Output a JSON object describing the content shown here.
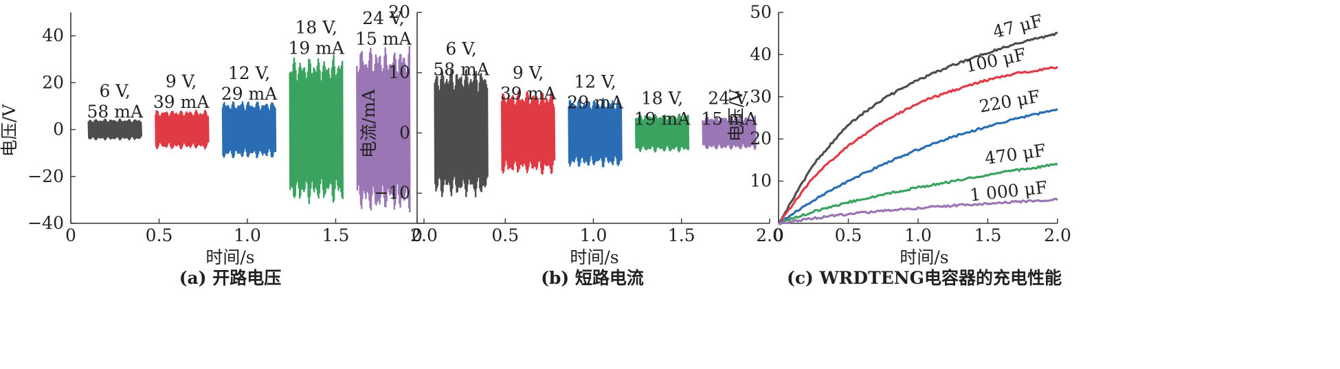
{
  "chart_data": [
    {
      "type": "line",
      "caption": "(a) 开路电压",
      "xlabel": "时间/s",
      "ylabel": "电压/V",
      "xlim": [
        0,
        2.0
      ],
      "ylim": [
        -40,
        50
      ],
      "xticks": [
        0,
        0.5,
        1.0,
        1.5,
        2.0
      ],
      "xtick_labels": [
        "0",
        "0.5",
        "1.0",
        "1.5",
        "2.0"
      ],
      "yticks": [
        -40,
        -20,
        0,
        20,
        40
      ],
      "ytick_labels": [
        "−40",
        "−20",
        "0",
        "20",
        "40"
      ],
      "series": [
        {
          "x_range": [
            0.1,
            0.4
          ],
          "amplitude": 4.5,
          "color": "#4d4d4d",
          "label_lines": [
            "6 V,",
            "58 mA"
          ],
          "label_pos": [
            0.25,
            14
          ]
        },
        {
          "x_range": [
            0.48,
            0.78
          ],
          "amplitude": 8.5,
          "color": "#e03a44",
          "label_lines": [
            "9 V,",
            "39 mA"
          ],
          "label_pos": [
            0.625,
            18
          ]
        },
        {
          "x_range": [
            0.86,
            1.16
          ],
          "amplitude": 12.5,
          "color": "#2a6db5",
          "label_lines": [
            "12 V,",
            "29 mA"
          ],
          "label_pos": [
            1.01,
            21.5
          ]
        },
        {
          "x_range": [
            1.24,
            1.54
          ],
          "amplitude": 32,
          "color": "#3aa35f",
          "label_lines": [
            "18 V,",
            "19 mA"
          ],
          "label_pos": [
            1.39,
            41
          ]
        },
        {
          "x_range": [
            1.62,
            1.92
          ],
          "amplitude": 36,
          "color": "#9b76b5",
          "label_lines": [
            "24 V,",
            "15 mA"
          ],
          "label_pos": [
            1.77,
            45
          ]
        }
      ]
    },
    {
      "type": "line",
      "caption": "(b) 短路电流",
      "xlabel": "时间/s",
      "ylabel": "电流/mA",
      "xlim": [
        0,
        2.0
      ],
      "ylim": [
        -15,
        20
      ],
      "xticks": [
        0,
        0.5,
        1.0,
        1.5,
        2.0
      ],
      "xtick_labels": [
        "0",
        "0.5",
        "1.0",
        "1.5",
        "2.0"
      ],
      "yticks": [
        -10,
        0,
        10,
        20
      ],
      "ytick_labels": [
        "−10",
        "0",
        "10",
        "20"
      ],
      "series": [
        {
          "x_range": [
            0.1,
            0.4
          ],
          "amplitude": 11,
          "color": "#4d4d4d",
          "label_lines": [
            "6 V,",
            "58 mA"
          ],
          "label_pos": [
            0.25,
            13
          ]
        },
        {
          "x_range": [
            0.48,
            0.78
          ],
          "amplitude": 7,
          "color": "#e03a44",
          "label_lines": [
            "9 V,",
            "39 mA"
          ],
          "label_pos": [
            0.63,
            9
          ]
        },
        {
          "x_range": [
            0.86,
            1.16
          ],
          "amplitude": 5.8,
          "color": "#2a6db5",
          "label_lines": [
            "12 V,",
            "29 mA"
          ],
          "label_pos": [
            1.01,
            7.5
          ]
        },
        {
          "x_range": [
            1.24,
            1.54
          ],
          "amplitude": 3.2,
          "color": "#3aa35f",
          "label_lines": [
            "18 V,",
            "19 mA"
          ],
          "label_pos": [
            1.39,
            4.8
          ]
        },
        {
          "x_range": [
            1.62,
            1.92
          ],
          "amplitude": 2.8,
          "color": "#9b76b5",
          "label_lines": [
            "24 V,",
            "15 mA"
          ],
          "label_pos": [
            1.77,
            4.8
          ]
        }
      ]
    },
    {
      "type": "line",
      "caption": "(c) WRDTENG电容器的充电性能",
      "xlabel": "时间/s",
      "ylabel": "电压/V",
      "xlim": [
        0,
        2.0
      ],
      "ylim": [
        0,
        50
      ],
      "xticks": [
        0,
        0.5,
        1.0,
        1.5,
        2.0
      ],
      "xtick_labels": [
        "0",
        "0.5",
        "1.0",
        "1.5",
        "2.0"
      ],
      "yticks": [
        10,
        20,
        30,
        40,
        50
      ],
      "ytick_labels": [
        "10",
        "20",
        "30",
        "40",
        "50"
      ],
      "series": [
        {
          "name": "47 μF",
          "color": "#4d4d4d",
          "x": [
            0,
            0.25,
            0.5,
            0.75,
            1.0,
            1.25,
            1.5,
            1.75,
            2.0
          ],
          "y": [
            0,
            14,
            23.5,
            29.5,
            34,
            37.5,
            40.5,
            43,
            45
          ],
          "label_pos": [
            1.9,
            45.5
          ],
          "label_angle": -14
        },
        {
          "name": "100 μF",
          "color": "#e03a44",
          "x": [
            0,
            0.25,
            0.5,
            0.75,
            1.0,
            1.25,
            1.5,
            1.75,
            2.0
          ],
          "y": [
            0,
            11,
            18.5,
            24,
            28.5,
            31.5,
            34,
            35.8,
            37
          ],
          "label_pos": [
            1.78,
            37.5
          ],
          "label_angle": -12
        },
        {
          "name": "220 μF",
          "color": "#2a6db5",
          "x": [
            0,
            0.25,
            0.5,
            0.75,
            1.0,
            1.25,
            1.5,
            1.75,
            2.0
          ],
          "y": [
            0,
            5.5,
            10,
            14,
            17.5,
            20.5,
            23,
            25.2,
            27
          ],
          "label_pos": [
            1.88,
            27.5
          ],
          "label_angle": -10
        },
        {
          "name": "470 μF",
          "color": "#3aa35f",
          "x": [
            0,
            0.25,
            0.5,
            0.75,
            1.0,
            1.25,
            1.5,
            1.75,
            2.0
          ],
          "y": [
            0,
            2.8,
            5,
            6.8,
            8.5,
            10,
            11.5,
            12.8,
            14
          ],
          "label_pos": [
            1.92,
            14.7
          ],
          "label_angle": -8
        },
        {
          "name": "1 000 μF",
          "color": "#9b76b5",
          "x": [
            0,
            0.25,
            0.5,
            0.75,
            1.0,
            1.25,
            1.5,
            1.75,
            2.0
          ],
          "y": [
            0,
            1.2,
            2.2,
            3,
            3.6,
            4.2,
            4.7,
            5.2,
            5.6
          ],
          "label_pos": [
            1.93,
            5.9
          ],
          "label_angle": -6
        }
      ]
    }
  ]
}
